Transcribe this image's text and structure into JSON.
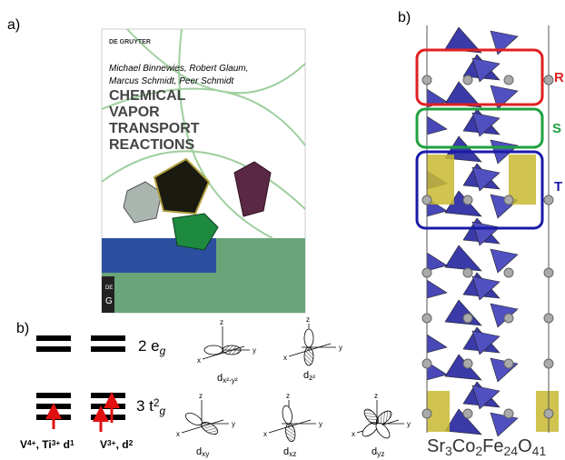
{
  "panel_a": {
    "label": "a)",
    "book": {
      "publisher": "DE GRUYTER",
      "authors": [
        "Michael Binnewies, Robert Glaum,",
        "Marcus Schmidt, Peer Schmidt"
      ],
      "title_lines": [
        "CHEMICAL",
        "VAPOR",
        "TRANSPORT",
        "REACTIONS"
      ],
      "logo": [
        "DE",
        "G"
      ]
    }
  },
  "panel_b_levels": {
    "label": "b)",
    "eg": [
      {
        "t": "2 e"
      },
      {
        "sub": "g"
      }
    ],
    "t2g": [
      {
        "t": "3 t"
      },
      {
        "sup": "2"
      },
      {
        "sub": "g"
      }
    ],
    "ion1": [
      {
        "t": "V"
      },
      {
        "sup": "4+"
      },
      {
        "t": ", Ti"
      },
      {
        "sup": "3+"
      },
      {
        "t": " d"
      },
      {
        "sup": "1"
      }
    ],
    "ion2": [
      {
        "t": "V"
      },
      {
        "sup": "3+"
      },
      {
        "t": ", d"
      },
      {
        "sup": "2"
      }
    ],
    "orbitals": [
      {
        "d": "d",
        "sub": "x²-y²",
        "axes": [
          "z",
          "x",
          "y"
        ]
      },
      {
        "d": "d",
        "sub": "z²",
        "axes": [
          "z",
          "x",
          "y"
        ]
      },
      {
        "d": "d",
        "sub": "xy",
        "axes": [
          "z",
          "x",
          "y"
        ]
      },
      {
        "d": "d",
        "sub": "xz",
        "axes": [
          "z",
          "x",
          "y"
        ]
      },
      {
        "d": "d",
        "sub": "yz",
        "axes": [
          "z",
          "x",
          "y"
        ]
      }
    ]
  },
  "panel_b_structure": {
    "label": "b)",
    "boxes": [
      {
        "label": "R",
        "color": "#e02020"
      },
      {
        "label": "S",
        "color": "#20a040"
      },
      {
        "label": "T",
        "color": "#1a1aa8"
      }
    ],
    "formula": [
      {
        "t": "Sr"
      },
      {
        "sub": "3"
      },
      {
        "t": "Co"
      },
      {
        "sub": "2"
      },
      {
        "t": "Fe"
      },
      {
        "sub": "24"
      },
      {
        "t": "O"
      },
      {
        "sub": "41"
      }
    ]
  }
}
